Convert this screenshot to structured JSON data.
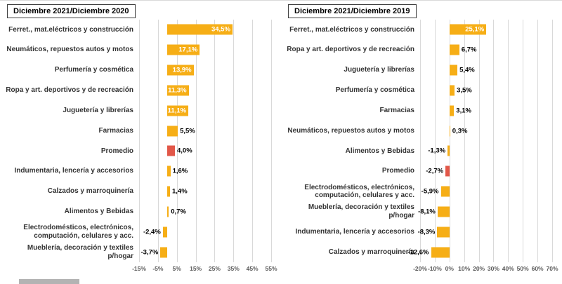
{
  "page": {
    "background": "#ffffff"
  },
  "chart_data": [
    {
      "type": "bar",
      "orientation": "horizontal",
      "title": "Diciembre 2021/Diciembre 2020",
      "bar_color": "#F6AE16",
      "highlight_color": "#E25748",
      "axis": {
        "min": -15,
        "max": 55,
        "ticks": [
          -15,
          -5,
          5,
          15,
          25,
          35,
          45,
          55
        ],
        "tick_labels": [
          "-15%",
          "-5%",
          "5%",
          "15%",
          "25%",
          "35%",
          "45%",
          "55%"
        ],
        "grid": true
      },
      "items": [
        {
          "label": "Ferret., mat.eléctricos y construcción",
          "value": 34.5,
          "display": "34,5%"
        },
        {
          "label": "Neumáticos, repuestos autos y motos",
          "value": 17.1,
          "display": "17,1%"
        },
        {
          "label": "Perfumería y cosmética",
          "value": 13.9,
          "display": "13,9%"
        },
        {
          "label": "Ropa y art. deportivos y de recreación",
          "value": 11.3,
          "display": "11,3%"
        },
        {
          "label": "Juguetería y librerías",
          "value": 11.1,
          "display": "11,1%"
        },
        {
          "label": "Farmacias",
          "value": 5.5,
          "display": "5,5%"
        },
        {
          "label": "Promedio",
          "value": 4.0,
          "display": "4,0%",
          "highlight": true
        },
        {
          "label": "Indumentaria, lencería y accesorios",
          "value": 1.6,
          "display": "1,6%"
        },
        {
          "label": "Calzados y marroquinería",
          "value": 1.4,
          "display": "1,4%"
        },
        {
          "label": "Alimentos y Bebidas",
          "value": 0.7,
          "display": "0,7%"
        },
        {
          "label": "Electrodomésticos, electrónicos, computación, celulares y acc.",
          "value": -2.4,
          "display": "-2,4%"
        },
        {
          "label": "Mueblería, decoración y textiles p/hogar",
          "value": -3.7,
          "display": "-3,7%"
        }
      ]
    },
    {
      "type": "bar",
      "orientation": "horizontal",
      "title": "Diciembre 2021/Diciembre 2019",
      "bar_color": "#F6AE16",
      "highlight_color": "#E25748",
      "axis": {
        "min": -20,
        "max": 70,
        "ticks": [
          -20,
          -10,
          0,
          10,
          20,
          30,
          40,
          50,
          60,
          70
        ],
        "tick_labels": [
          "-20%",
          "-10%",
          "0%",
          "10%",
          "20%",
          "30%",
          "40%",
          "50%",
          "60%",
          "70%"
        ],
        "grid": true
      },
      "items": [
        {
          "label": "Ferret., mat.eléctricos y construcción",
          "value": 25.1,
          "display": "25,1%"
        },
        {
          "label": "Ropa y art. deportivos y de recreación",
          "value": 6.7,
          "display": "6,7%"
        },
        {
          "label": "Juguetería y librerías",
          "value": 5.4,
          "display": "5,4%"
        },
        {
          "label": "Perfumería y cosmética",
          "value": 3.5,
          "display": "3,5%"
        },
        {
          "label": "Farmacias",
          "value": 3.1,
          "display": "3,1%"
        },
        {
          "label": "Neumáticos, repuestos autos y motos",
          "value": 0.3,
          "display": "0,3%"
        },
        {
          "label": "Alimentos y Bebidas",
          "value": -1.3,
          "display": "-1,3%"
        },
        {
          "label": "Promedio",
          "value": -2.7,
          "display": "-2,7%",
          "highlight": true
        },
        {
          "label": "Electrodomésticos, electrónicos, computación, celulares y acc.",
          "value": -5.9,
          "display": "-5,9%"
        },
        {
          "label": "Mueblería, decoración y textiles p/hogar",
          "value": -8.1,
          "display": "-8,1%"
        },
        {
          "label": "Indumentaria, lencería y accesorios",
          "value": -8.3,
          "display": "-8,3%"
        },
        {
          "label": "Calzados y marroquinería",
          "value": -12.6,
          "display": "-12,6%"
        }
      ]
    }
  ]
}
